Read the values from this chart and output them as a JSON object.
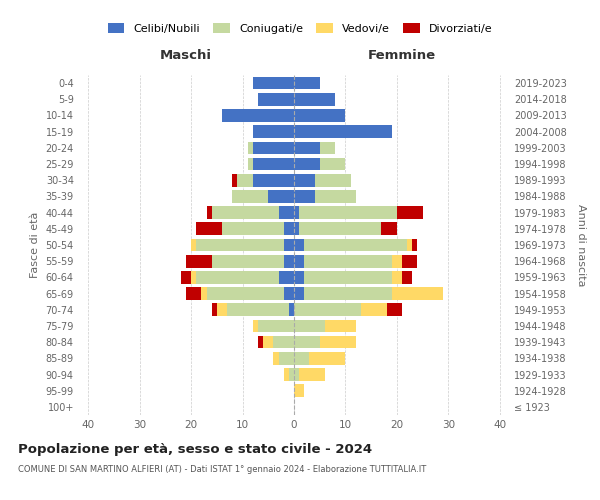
{
  "age_groups": [
    "100+",
    "95-99",
    "90-94",
    "85-89",
    "80-84",
    "75-79",
    "70-74",
    "65-69",
    "60-64",
    "55-59",
    "50-54",
    "45-49",
    "40-44",
    "35-39",
    "30-34",
    "25-29",
    "20-24",
    "15-19",
    "10-14",
    "5-9",
    "0-4"
  ],
  "birth_years": [
    "≤ 1923",
    "1924-1928",
    "1929-1933",
    "1934-1938",
    "1939-1943",
    "1944-1948",
    "1949-1953",
    "1954-1958",
    "1959-1963",
    "1964-1968",
    "1969-1973",
    "1974-1978",
    "1979-1983",
    "1984-1988",
    "1989-1993",
    "1994-1998",
    "1999-2003",
    "2004-2008",
    "2009-2013",
    "2014-2018",
    "2019-2023"
  ],
  "males": {
    "celibi": [
      0,
      0,
      0,
      0,
      0,
      0,
      1,
      2,
      3,
      2,
      2,
      2,
      3,
      5,
      8,
      8,
      8,
      8,
      14,
      7,
      8
    ],
    "coniugati": [
      0,
      0,
      1,
      3,
      4,
      7,
      12,
      15,
      16,
      14,
      17,
      12,
      13,
      7,
      3,
      1,
      1,
      0,
      0,
      0,
      0
    ],
    "vedovi": [
      0,
      0,
      1,
      1,
      2,
      1,
      2,
      1,
      1,
      0,
      1,
      0,
      0,
      0,
      0,
      0,
      0,
      0,
      0,
      0,
      0
    ],
    "divorziati": [
      0,
      0,
      0,
      0,
      1,
      0,
      1,
      3,
      2,
      5,
      0,
      5,
      1,
      0,
      1,
      0,
      0,
      0,
      0,
      0,
      0
    ]
  },
  "females": {
    "nubili": [
      0,
      0,
      0,
      0,
      0,
      0,
      0,
      2,
      2,
      2,
      2,
      1,
      1,
      4,
      4,
      5,
      5,
      19,
      10,
      8,
      5
    ],
    "coniugate": [
      0,
      0,
      1,
      3,
      5,
      6,
      13,
      17,
      17,
      17,
      20,
      16,
      19,
      8,
      7,
      5,
      3,
      0,
      0,
      0,
      0
    ],
    "vedove": [
      0,
      2,
      5,
      7,
      7,
      6,
      5,
      10,
      2,
      2,
      1,
      0,
      0,
      0,
      0,
      0,
      0,
      0,
      0,
      0,
      0
    ],
    "divorziate": [
      0,
      0,
      0,
      0,
      0,
      0,
      3,
      0,
      2,
      3,
      1,
      3,
      5,
      0,
      0,
      0,
      0,
      0,
      0,
      0,
      0
    ]
  },
  "colors": {
    "celibi_nubili": "#4472c4",
    "coniugati_e": "#c5d9a0",
    "vedovi_e": "#ffd966",
    "divorziati_e": "#c00000"
  },
  "xlim": 42,
  "title": "Popolazione per età, sesso e stato civile - 2024",
  "subtitle": "COMUNE DI SAN MARTINO ALFIERI (AT) - Dati ISTAT 1° gennaio 2024 - Elaborazione TUTTITALIA.IT",
  "ylabel_left": "Fasce di età",
  "ylabel_right": "Anni di nascita",
  "xlabel_left": "Maschi",
  "xlabel_right": "Femmine",
  "legend_labels": [
    "Celibi/Nubili",
    "Coniugati/e",
    "Vedovi/e",
    "Divorziati/e"
  ],
  "background_color": "#ffffff"
}
